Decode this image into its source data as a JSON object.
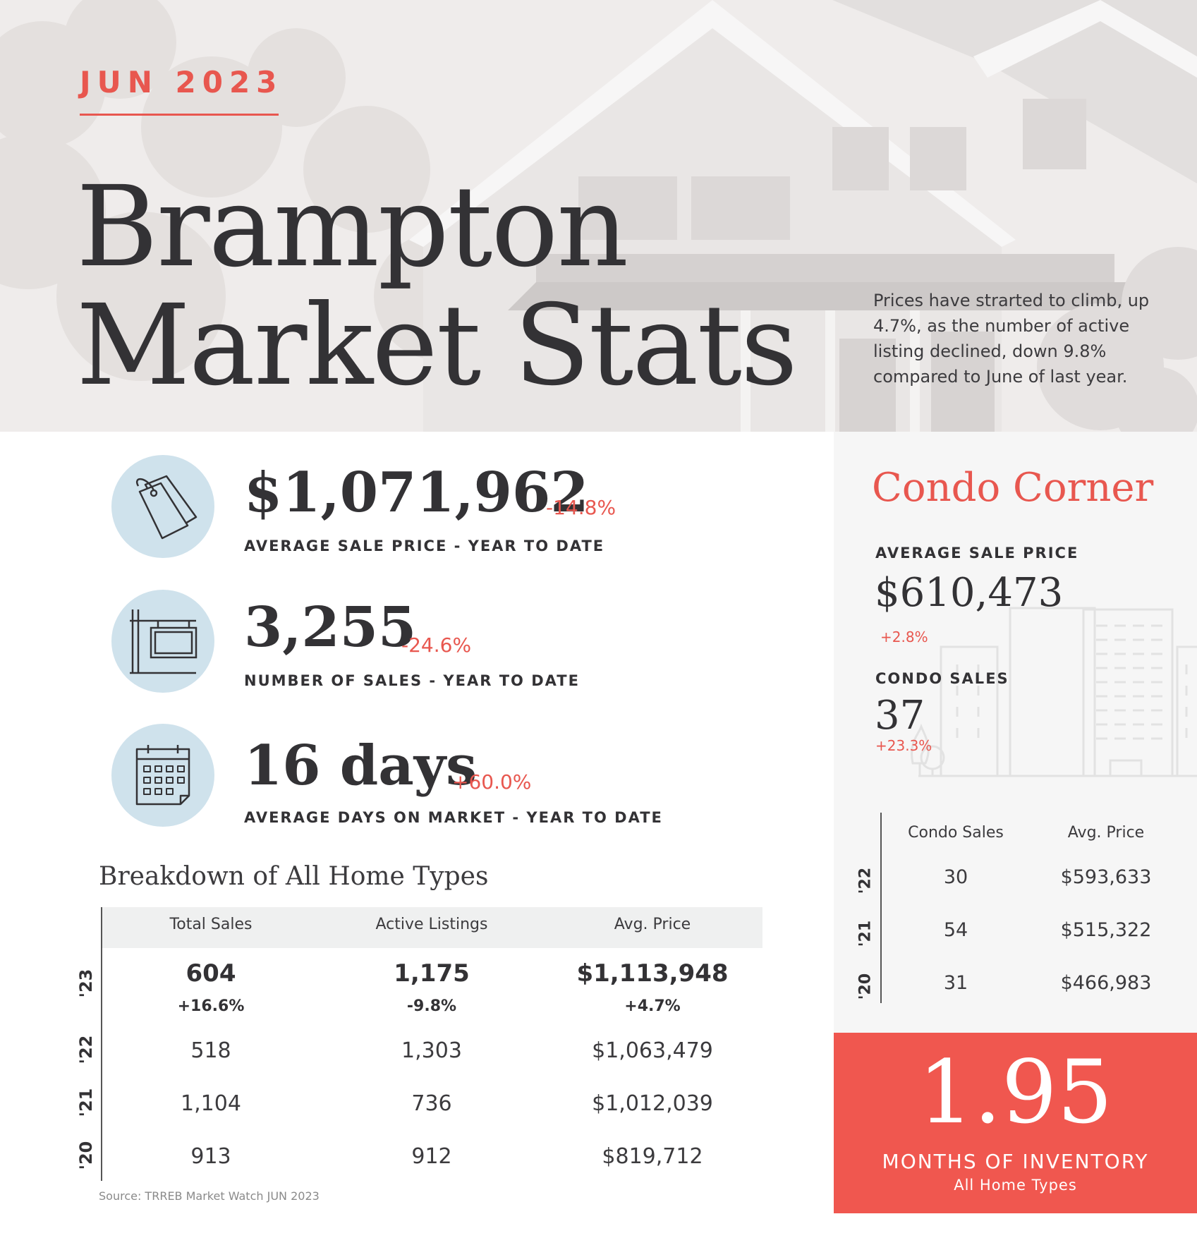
{
  "header": {
    "month": "JUN 2023",
    "title_line1": "Brampton",
    "title_line2": "Market Stats",
    "intro": "Prices have strarted to climb, up 4.7%, as the number of active listing declined, down 9.8% compared to June of last year."
  },
  "kpis": [
    {
      "value": "$1,071,962",
      "change": "-14.8%",
      "label": "AVERAGE SALE PRICE - YEAR TO DATE",
      "icon": "price-tag-icon"
    },
    {
      "value": "3,255",
      "change": "-24.6%",
      "label": "NUMBER OF SALES - YEAR TO DATE",
      "icon": "sale-sign-icon"
    },
    {
      "value": "16 days",
      "change": "+60.0%",
      "label": "AVERAGE DAYS ON MARKET - YEAR TO DATE",
      "icon": "calendar-icon"
    }
  ],
  "breakdown": {
    "title": "Breakdown of All Home Types",
    "columns": [
      "Total Sales",
      "Active Listings",
      "Avg. Price"
    ],
    "current": {
      "year": "'23",
      "values": [
        "604",
        "1,175",
        "$1,113,948"
      ],
      "changes": [
        "+16.6%",
        "-9.8%",
        "+4.7%"
      ]
    },
    "history": [
      {
        "year": "'22",
        "values": [
          "518",
          "1,303",
          "$1,063,479"
        ]
      },
      {
        "year": "'21",
        "values": [
          "1,104",
          "736",
          "$1,012,039"
        ]
      },
      {
        "year": "'20",
        "values": [
          "913",
          "912",
          "$819,712"
        ]
      }
    ],
    "source": "Source: TRREB Market Watch JUN 2023"
  },
  "condo": {
    "title": "Condo Corner",
    "avg_price_label": "AVERAGE SALE PRICE",
    "avg_price_value": "$610,473",
    "avg_price_change": "+2.8%",
    "sales_label": "CONDO SALES",
    "sales_value": "37",
    "sales_change": "+23.3%",
    "columns": [
      "Condo Sales",
      "Avg. Price"
    ],
    "rows": [
      {
        "year": "'22",
        "values": [
          "30",
          "$593,633"
        ]
      },
      {
        "year": "'21",
        "values": [
          "54",
          "$515,322"
        ]
      },
      {
        "year": "'20",
        "values": [
          "31",
          "$466,983"
        ]
      }
    ]
  },
  "inventory": {
    "value": "1.95",
    "label": "MONTHS OF INVENTORY",
    "sublabel": "All Home Types"
  },
  "colors": {
    "accent": "#e8574f",
    "inventory_bg": "#f0574f",
    "icon_circle": "#cfe2ec",
    "text": "#333235"
  }
}
